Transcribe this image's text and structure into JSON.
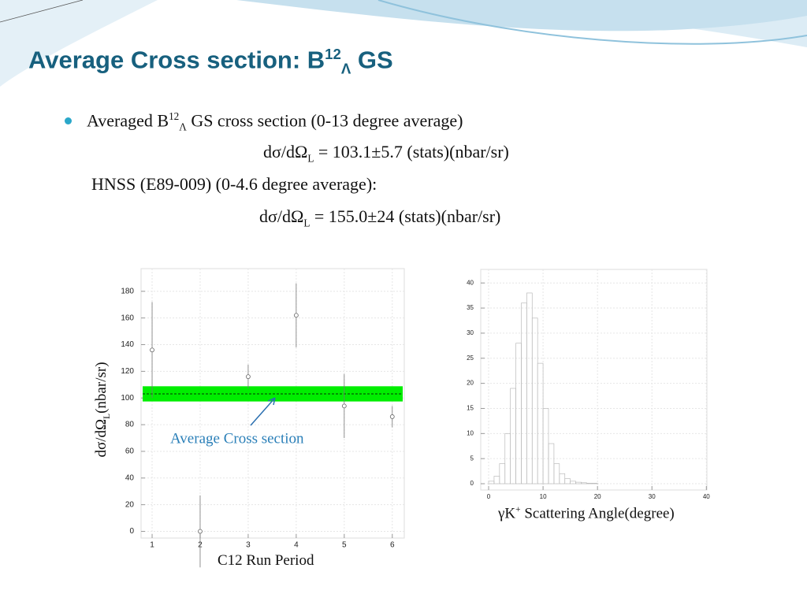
{
  "title": {
    "text": "Average Cross section: B",
    "sup": "12",
    "sub": "Λ",
    "tail": " GS"
  },
  "bullets": [
    {
      "text": "Averaged B",
      "sup": "12",
      "sub": "Λ",
      "tail": " GS cross section (0-13 degree average)"
    },
    {
      "text": "dσ/dΩ",
      "sub": "L",
      "tail": " = 103.1±5.7 (stats)(nbar/sr)"
    },
    {
      "text": "HNSS (E89-009) (0-4.6 degree average):"
    },
    {
      "text": "dσ/dΩ",
      "sub": "L",
      "tail": " = 155.0±24 (stats)(nbar/sr)"
    }
  ],
  "chart_data": [
    {
      "type": "scatter",
      "x": [
        1,
        2,
        3,
        4,
        5,
        6
      ],
      "values": [
        136,
        0,
        116,
        162,
        94,
        86
      ],
      "errors": [
        36,
        27,
        9,
        24,
        24,
        8
      ],
      "average": 103.1,
      "average_error": 5.7,
      "band_color": "#00ee00",
      "annotation": "Average Cross section",
      "y_label": {
        "text": "dσ/dΩ",
        "sub": "L",
        "tail": "(nbar/sr)"
      },
      "x_label": "C12 Run Period",
      "xlim": [
        0.77,
        6.25
      ],
      "ylim": [
        -5,
        197
      ],
      "xticks": [
        1,
        2,
        3,
        4,
        5,
        6
      ],
      "yticks": [
        0,
        20,
        40,
        60,
        80,
        100,
        120,
        140,
        160,
        180
      ],
      "grid": true
    },
    {
      "type": "histogram",
      "bins": [
        0,
        1,
        2,
        3,
        4,
        5,
        6,
        7,
        8,
        9,
        10,
        11,
        12,
        13,
        14,
        15,
        16,
        17,
        18,
        19,
        20,
        21,
        22,
        23,
        24,
        25,
        26,
        27,
        28,
        29,
        30,
        31,
        32,
        33,
        34,
        35,
        36,
        37,
        38,
        39,
        40
      ],
      "counts": [
        0.5,
        1.5,
        4,
        10,
        19,
        28,
        36,
        38,
        33,
        24,
        15,
        8,
        4,
        2,
        1,
        0.5,
        0.3,
        0.2,
        0.1,
        0.1,
        0,
        0,
        0,
        0,
        0,
        0,
        0,
        0,
        0,
        0,
        0,
        0,
        0,
        0,
        0,
        0,
        0,
        0,
        0,
        0
      ],
      "x_label": {
        "text": "γK",
        "sup": "+",
        "tail": " Scattering Angle(degree)"
      },
      "xlim": [
        -1.45,
        40.1
      ],
      "ylim": [
        -1.25,
        42.7
      ],
      "xticks": [
        0,
        10,
        20,
        30,
        40
      ],
      "yticks": [
        0,
        5,
        10,
        15,
        20,
        25,
        30,
        35,
        40
      ],
      "grid": true
    }
  ]
}
